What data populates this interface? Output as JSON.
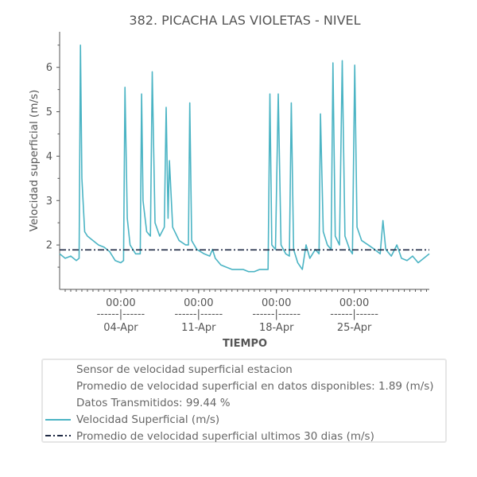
{
  "chart_data": {
    "type": "line",
    "title": "382. PICACHA LAS VIOLETAS - NIVEL",
    "xlabel": "TIEMPO",
    "ylabel": "Velocidad superficial (m/s)",
    "x_range": [
      "2021-03-29 12:00",
      "2021-05-01 18:00"
    ],
    "ylim": [
      1.0,
      6.8
    ],
    "yticks": [
      2,
      3,
      4,
      5,
      6
    ],
    "xtick_labels": [
      {
        "date": "2021-04-04 00:00",
        "time": "00:00",
        "sep": "------|------",
        "day": "04-Apr"
      },
      {
        "date": "2021-04-11 00:00",
        "time": "00:00",
        "sep": "------|------",
        "day": "11-Apr"
      },
      {
        "date": "2021-04-18 00:00",
        "time": "00:00",
        "sep": "------|------",
        "day": "18-Apr"
      },
      {
        "date": "2021-04-25 00:00",
        "time": "00:00",
        "sep": "------|------",
        "day": "25-Apr"
      }
    ],
    "grid": false,
    "legend_position": "bottom",
    "series": [
      {
        "name": "Velocidad Superficial (m/s)",
        "color": "#4bb4c4",
        "style": "solid",
        "points": [
          [
            "2021-03-29 12:00",
            1.8
          ],
          [
            "2021-03-30 00:00",
            1.7
          ],
          [
            "2021-03-30 12:00",
            1.75
          ],
          [
            "2021-03-31 00:00",
            1.65
          ],
          [
            "2021-03-31 06:00",
            1.7
          ],
          [
            "2021-03-31 09:00",
            6.5
          ],
          [
            "2021-03-31 12:00",
            3.5
          ],
          [
            "2021-03-31 18:00",
            2.3
          ],
          [
            "2021-04-01 00:00",
            2.2
          ],
          [
            "2021-04-01 12:00",
            2.1
          ],
          [
            "2021-04-02 00:00",
            2.0
          ],
          [
            "2021-04-02 12:00",
            1.95
          ],
          [
            "2021-04-03 00:00",
            1.85
          ],
          [
            "2021-04-03 12:00",
            1.65
          ],
          [
            "2021-04-04 00:00",
            1.6
          ],
          [
            "2021-04-04 06:00",
            1.65
          ],
          [
            "2021-04-04 09:00",
            5.55
          ],
          [
            "2021-04-04 14:00",
            2.6
          ],
          [
            "2021-04-04 20:00",
            2.0
          ],
          [
            "2021-04-05 08:00",
            1.8
          ],
          [
            "2021-04-05 18:00",
            1.8
          ],
          [
            "2021-04-05 21:00",
            5.4
          ],
          [
            "2021-04-06 00:00",
            3.0
          ],
          [
            "2021-04-06 08:00",
            2.3
          ],
          [
            "2021-04-06 16:00",
            2.2
          ],
          [
            "2021-04-06 20:00",
            5.9
          ],
          [
            "2021-04-07 02:00",
            2.5
          ],
          [
            "2021-04-07 12:00",
            2.2
          ],
          [
            "2021-04-07 22:00",
            2.4
          ],
          [
            "2021-04-08 02:00",
            5.1
          ],
          [
            "2021-04-08 06:00",
            2.6
          ],
          [
            "2021-04-08 09:00",
            3.9
          ],
          [
            "2021-04-08 16:00",
            2.4
          ],
          [
            "2021-04-09 06:00",
            2.1
          ],
          [
            "2021-04-09 20:00",
            2.0
          ],
          [
            "2021-04-10 02:00",
            2.0
          ],
          [
            "2021-04-10 05:00",
            5.2
          ],
          [
            "2021-04-10 09:00",
            2.1
          ],
          [
            "2021-04-10 20:00",
            1.9
          ],
          [
            "2021-04-11 12:00",
            1.8
          ],
          [
            "2021-04-12 00:00",
            1.75
          ],
          [
            "2021-04-12 06:00",
            1.9
          ],
          [
            "2021-04-12 12:00",
            1.7
          ],
          [
            "2021-04-13 00:00",
            1.55
          ],
          [
            "2021-04-13 12:00",
            1.5
          ],
          [
            "2021-04-14 00:00",
            1.45
          ],
          [
            "2021-04-14 12:00",
            1.45
          ],
          [
            "2021-04-15 00:00",
            1.45
          ],
          [
            "2021-04-15 12:00",
            1.4
          ],
          [
            "2021-04-16 00:00",
            1.4
          ],
          [
            "2021-04-16 12:00",
            1.45
          ],
          [
            "2021-04-17 00:00",
            1.45
          ],
          [
            "2021-04-17 06:00",
            1.45
          ],
          [
            "2021-04-17 10:00",
            5.4
          ],
          [
            "2021-04-17 14:00",
            2.0
          ],
          [
            "2021-04-17 22:00",
            1.9
          ],
          [
            "2021-04-18 04:00",
            5.4
          ],
          [
            "2021-04-18 10:00",
            2.0
          ],
          [
            "2021-04-18 20:00",
            1.8
          ],
          [
            "2021-04-19 04:00",
            1.75
          ],
          [
            "2021-04-19 08:00",
            5.2
          ],
          [
            "2021-04-19 13:00",
            1.9
          ],
          [
            "2021-04-19 22:00",
            1.6
          ],
          [
            "2021-04-20 08:00",
            1.45
          ],
          [
            "2021-04-20 16:00",
            2.0
          ],
          [
            "2021-04-21 00:00",
            1.7
          ],
          [
            "2021-04-21 12:00",
            1.9
          ],
          [
            "2021-04-21 20:00",
            1.8
          ],
          [
            "2021-04-21 23:00",
            4.95
          ],
          [
            "2021-04-22 05:00",
            2.3
          ],
          [
            "2021-04-22 14:00",
            2.0
          ],
          [
            "2021-04-22 22:00",
            1.9
          ],
          [
            "2021-04-23 02:00",
            6.1
          ],
          [
            "2021-04-23 07:00",
            2.2
          ],
          [
            "2021-04-23 16:00",
            2.0
          ],
          [
            "2021-04-23 22:00",
            6.15
          ],
          [
            "2021-04-24 04:00",
            2.2
          ],
          [
            "2021-04-24 14:00",
            1.9
          ],
          [
            "2021-04-24 20:00",
            1.8
          ],
          [
            "2021-04-25 01:00",
            6.05
          ],
          [
            "2021-04-25 06:00",
            2.4
          ],
          [
            "2021-04-25 16:00",
            2.1
          ],
          [
            "2021-04-26 06:00",
            2.0
          ],
          [
            "2021-04-26 20:00",
            1.9
          ],
          [
            "2021-04-27 08:00",
            1.8
          ],
          [
            "2021-04-27 14:00",
            2.55
          ],
          [
            "2021-04-27 20:00",
            1.9
          ],
          [
            "2021-04-28 08:00",
            1.75
          ],
          [
            "2021-04-28 20:00",
            2.0
          ],
          [
            "2021-04-29 06:00",
            1.7
          ],
          [
            "2021-04-29 18:00",
            1.65
          ],
          [
            "2021-04-30 06:00",
            1.75
          ],
          [
            "2021-04-30 18:00",
            1.6
          ],
          [
            "2021-05-01 06:00",
            1.7
          ],
          [
            "2021-05-01 18:00",
            1.8
          ]
        ]
      },
      {
        "name": "Promedio de velocidad superficial ultimos 30 dias (m/s)",
        "color": "#1f2a44",
        "style": "dashdot",
        "points": [
          [
            "2021-03-29 12:00",
            1.89
          ],
          [
            "2021-05-01 18:00",
            1.89
          ]
        ]
      }
    ]
  },
  "legend": {
    "text_rows": [
      "Sensor de velocidad superficial estacion",
      "Promedio de velocidad superficial en datos disponibles: 1.89 (m/s)",
      "Datos Transmitidos: 99.44 %"
    ],
    "series_rows": [
      {
        "label": "Velocidad Superficial (m/s)",
        "color": "#4bb4c4",
        "style": "solid"
      },
      {
        "label": "Promedio de velocidad superficial ultimos 30 dias (m/s)",
        "color": "#1f2a44",
        "style": "dashdot"
      }
    ]
  }
}
